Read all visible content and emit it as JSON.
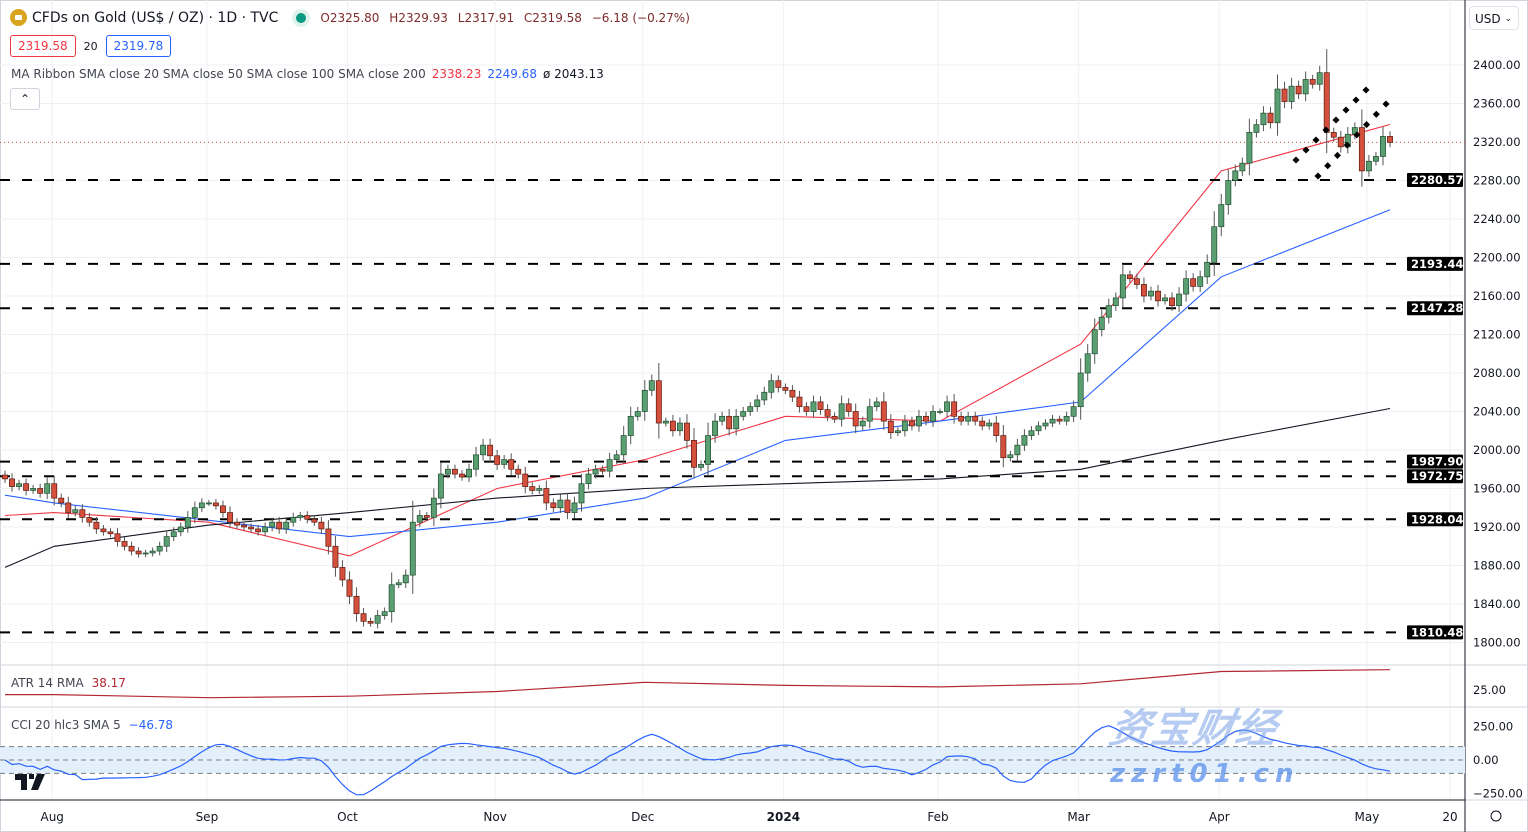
{
  "header": {
    "symbol_title": "CFDs on Gold (US$ / OZ) · 1D · TVC",
    "open": "O2325.80",
    "high": "H2329.93",
    "low": "L2317.91",
    "close": "C2319.58",
    "change": "−6.18 (−0.27%)",
    "sell_price": "2319.58",
    "spread": "20",
    "buy_price": "2319.78",
    "collapse_icon": "chevron-up-icon"
  },
  "ma_legend": {
    "label": "MA Ribbon SMA close 20 SMA close 50 SMA close 100 SMA close 200",
    "v1": "2338.23",
    "v2": "2249.68",
    "v3": "ø 2043.13"
  },
  "atr_legend": {
    "label": "ATR 14 RMA",
    "value": "38.17"
  },
  "cci_legend": {
    "label": "CCI 20 hlc3 SMA 5",
    "value": "−46.78"
  },
  "currency": "USD",
  "watermark": {
    "line1": "资宝财经",
    "line2": "zzrt01.cn"
  },
  "colors": {
    "up": "#5a9e72",
    "down": "#d4503c",
    "sma20": "#f23645",
    "sma50": "#2962ff",
    "sma200": "#131722",
    "atr": "#b22833",
    "cci": "#2962ff",
    "cci_band": "#e3f0fb"
  },
  "chart_data": {
    "type": "candlestick",
    "title": "CFDs on Gold (US$ / OZ) · 1D · TVC",
    "ylim": [
      1780,
      2440
    ],
    "y_ticks": [
      "2400.00",
      "2360.00",
      "2320.00",
      "2280.00",
      "2240.00",
      "2200.00",
      "2160.00",
      "2120.00",
      "2080.00",
      "2040.00",
      "2000.00",
      "1960.00",
      "1920.00",
      "1880.00",
      "1840.00",
      "1800.00"
    ],
    "last_price": 2319.58,
    "levels": [
      "2280.57",
      "2193.44",
      "2147.28",
      "1987.90",
      "1972.75",
      "1928.04",
      "1810.48"
    ],
    "months": [
      {
        "label": "",
        "closes": [
          1970,
          1962,
          1965,
          1958,
          1960,
          1955,
          1965
        ]
      },
      {
        "label": "Aug",
        "closes": [
          1950,
          1945,
          1935,
          1938,
          1930,
          1925,
          1918,
          1915,
          1913,
          1905,
          1900,
          1895,
          1892,
          1893,
          1895,
          1900,
          1910,
          1915,
          1920,
          1930,
          1940,
          1945
        ]
      },
      {
        "label": "Sep",
        "closes": [
          1945,
          1942,
          1935,
          1925,
          1922,
          1920,
          1918,
          1915,
          1920,
          1925,
          1918,
          1925,
          1930,
          1932,
          1928,
          1925,
          1918,
          1900,
          1878,
          1865
        ]
      },
      {
        "label": "Oct",
        "closes": [
          1848,
          1830,
          1822,
          1820,
          1828,
          1832,
          1860,
          1862,
          1870,
          1925,
          1932,
          1930,
          1950,
          1975,
          1980,
          1975,
          1972,
          1980,
          1995,
          2005,
          1994
        ]
      },
      {
        "label": "Nov",
        "closes": [
          1985,
          1990,
          1980,
          1975,
          1962,
          1958,
          1960,
          1945,
          1940,
          1948,
          1935,
          1945,
          1965,
          1975,
          1980,
          1978,
          1990,
          1995,
          2015,
          2035,
          2040
        ]
      },
      {
        "label": "Dec",
        "closes": [
          2062,
          2072,
          2028,
          2030,
          2020,
          2028,
          2010,
          1982,
          1985,
          2015,
          2030,
          2035,
          2022,
          2035,
          2040,
          2045,
          2052,
          2060,
          2072,
          2065
        ]
      },
      {
        "label": "2024",
        "closes": [
          2062,
          2055,
          2045,
          2040,
          2050,
          2042,
          2035,
          2032,
          2048,
          2040,
          2025,
          2030,
          2045,
          2050,
          2030,
          2018,
          2020,
          2030,
          2025,
          2035,
          2030,
          2040
        ]
      },
      {
        "label": "Feb",
        "closes": [
          2040,
          2050,
          2035,
          2030,
          2035,
          2030,
          2025,
          2028,
          2015,
          1992,
          1995,
          2005,
          2015,
          2020,
          2025,
          2028,
          2032,
          2030,
          2035,
          2045
        ]
      },
      {
        "label": "Mar",
        "closes": [
          2080,
          2100,
          2125,
          2138,
          2150,
          2158,
          2182,
          2178,
          2172,
          2160,
          2165,
          2155,
          2158,
          2150,
          2162,
          2178,
          2170,
          2180,
          2195,
          2232
        ]
      },
      {
        "label": "Apr",
        "closes": [
          2255,
          2280,
          2290,
          2298,
          2330,
          2338,
          2350,
          2340,
          2375,
          2362,
          2378,
          2370,
          2385,
          2380,
          2392,
          2330,
          2325,
          2315,
          2328,
          2335,
          2290
        ]
      },
      {
        "label": "May",
        "closes": [
          2300,
          2305,
          2325.8,
          2319.58
        ]
      }
    ],
    "extra_x_label": "20",
    "moving_averages": [
      {
        "name": "SMA 20",
        "monthly": [
          1932,
          1935,
          1925,
          1890,
          1960,
          1990,
          2035,
          2030,
          2110,
          2290,
          2338.23
        ]
      },
      {
        "name": "SMA 50",
        "monthly": [
          1953,
          1945,
          1927,
          1910,
          1925,
          1950,
          2010,
          2030,
          2050,
          2180,
          2249.68
        ]
      },
      {
        "name": "SMA 200",
        "monthly": [
          1878,
          1900,
          1922,
          1935,
          1950,
          1960,
          1965,
          1970,
          1980,
          2010,
          2043.13
        ]
      }
    ],
    "atr": {
      "ticks": [
        "25.00"
      ],
      "monthly": [
        22,
        22,
        20,
        21,
        24,
        30,
        28,
        27,
        29,
        37,
        38.17
      ]
    },
    "cci": {
      "ticks": [
        "250.00",
        "0.00",
        "−250.00"
      ],
      "bands": [
        100,
        -100
      ]
    }
  }
}
